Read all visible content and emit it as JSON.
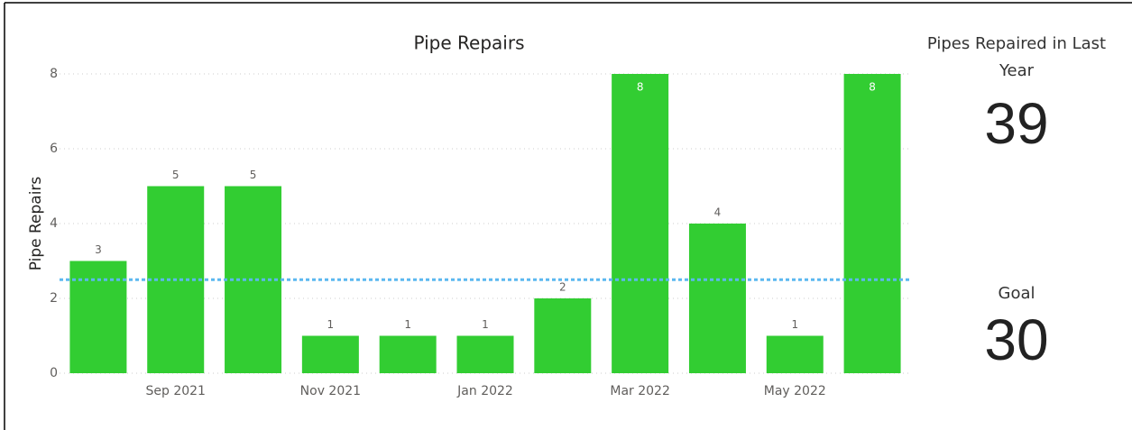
{
  "chart_data": {
    "type": "bar",
    "title": "Pipe Repairs",
    "y_label": "Pipe Repairs",
    "categories": [
      null,
      "Sep 2021",
      null,
      "Nov 2021",
      null,
      "Jan 2022",
      null,
      "Mar 2022",
      null,
      "May 2022",
      null
    ],
    "values": [
      3,
      5,
      5,
      1,
      1,
      1,
      2,
      8,
      4,
      1,
      8
    ],
    "color": "#32cd32",
    "ylim": [
      0,
      8
    ],
    "yticks": [
      0,
      2,
      4,
      6,
      8
    ],
    "grid": true,
    "reference_line": 2.5,
    "reference_color": "#5cb8f0"
  },
  "cards": [
    {
      "label": "Pipes Repaired in Last Year",
      "value": 39
    },
    {
      "label": "Goal",
      "value": 30
    }
  ]
}
